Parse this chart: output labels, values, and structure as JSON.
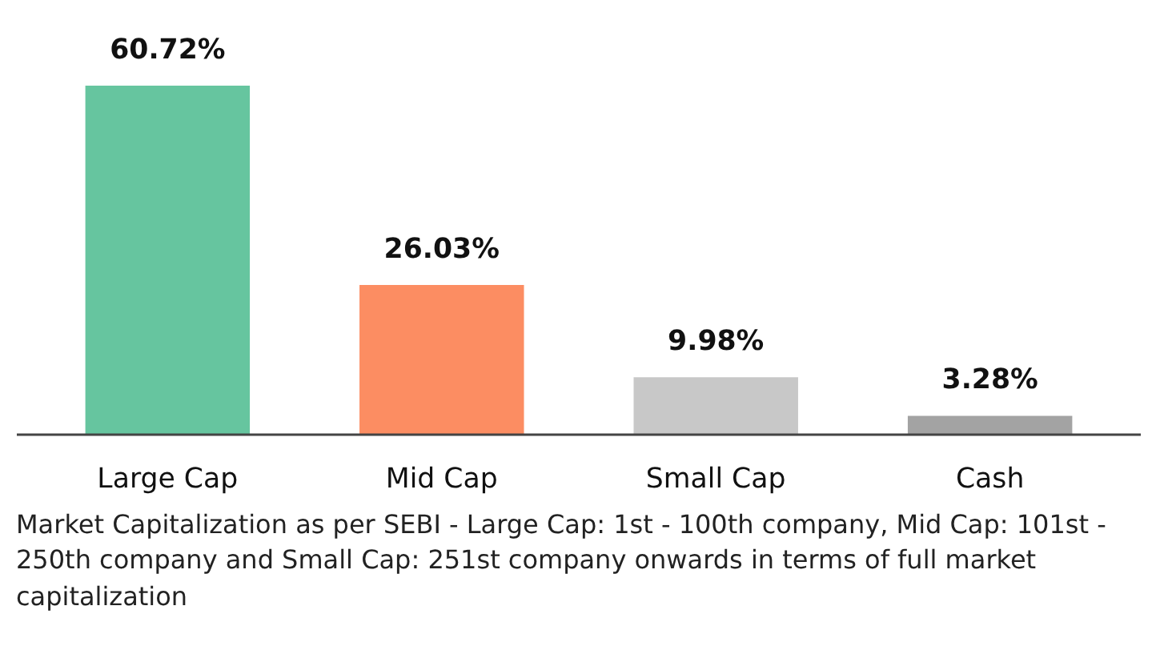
{
  "chart_data": {
    "type": "bar",
    "categories": [
      "Large Cap",
      "Mid Cap",
      "Small Cap",
      "Cash"
    ],
    "values": [
      60.72,
      26.03,
      9.98,
      3.28
    ],
    "colors": [
      "#66c59f",
      "#fc8d62",
      "#c8c8c8",
      "#a3a3a3"
    ],
    "value_labels": [
      "60.72%",
      "26.03%",
      "9.98%",
      "3.28%"
    ],
    "grid": false,
    "annotations": [
      "Market Capitalization as per SEBI - Large Cap: 1st - 100th company, Mid Cap: 101st - 250th company and Small Cap: 251st company onwards in terms of full market capitalization"
    ]
  }
}
